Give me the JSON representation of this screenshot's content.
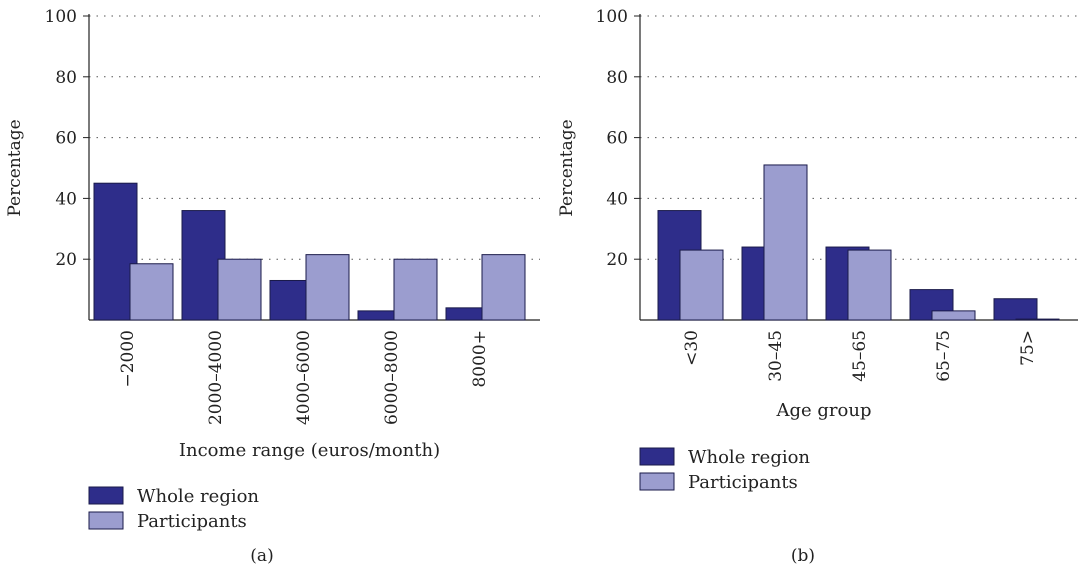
{
  "chart_data": [
    {
      "type": "bar",
      "panel_label": "(a)",
      "xlabel": "Income range (euros/month)",
      "ylabel": "Percentage",
      "ylim": [
        0,
        100
      ],
      "yticks": [
        20,
        40,
        60,
        80,
        100
      ],
      "grid": true,
      "legend_position": "bottom-left",
      "categories": [
        "−2000",
        "2000–4000",
        "4000–6000",
        "6000–8000",
        "8000+"
      ],
      "series": [
        {
          "name": "Whole region",
          "color": "#2e2d8a",
          "values": [
            45,
            36,
            13,
            3,
            4
          ]
        },
        {
          "name": "Participants",
          "color": "#9b9dcf",
          "values": [
            18.5,
            20,
            21.5,
            20,
            21.5
          ]
        }
      ]
    },
    {
      "type": "bar",
      "panel_label": "(b)",
      "xlabel": "Age group",
      "ylabel": "Percentage",
      "ylim": [
        0,
        100
      ],
      "yticks": [
        20,
        40,
        60,
        80,
        100
      ],
      "grid": true,
      "legend_position": "bottom-left",
      "categories": [
        "<30",
        "30–45",
        "45–65",
        "65–75",
        "75>"
      ],
      "series": [
        {
          "name": "Whole region",
          "color": "#2e2d8a",
          "values": [
            36,
            24,
            24,
            10,
            7
          ]
        },
        {
          "name": "Participants",
          "color": "#9b9dcf",
          "values": [
            23,
            51,
            23,
            3,
            0.3
          ]
        }
      ]
    }
  ]
}
